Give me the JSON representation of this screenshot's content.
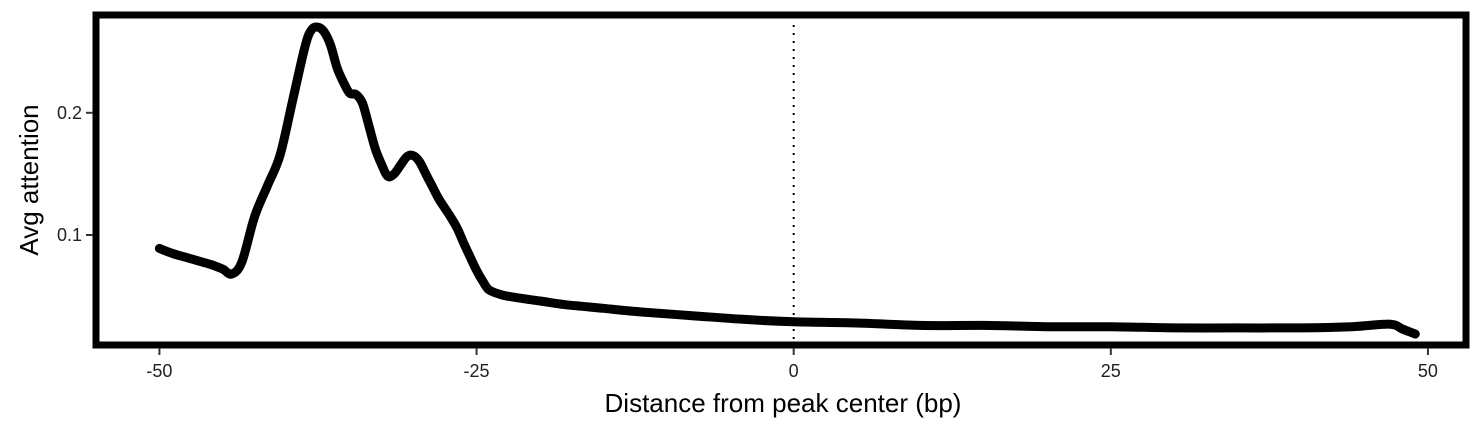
{
  "chart_data": {
    "type": "line",
    "title": "",
    "xlabel": "Distance from peak center (bp)",
    "ylabel": "Avg attention",
    "xlim": [
      -55,
      53
    ],
    "ylim": [
      0.01,
      0.28
    ],
    "x_ticks": [
      -50,
      -25,
      0,
      25,
      50
    ],
    "x_tick_labels": [
      "-50",
      "-25",
      "0",
      "25",
      "50"
    ],
    "y_ticks": [
      0.1,
      0.2
    ],
    "y_tick_labels": [
      "0.1",
      "0.2"
    ],
    "grid": false,
    "legend": "none",
    "reference_line": {
      "x": 0,
      "style": "dotted"
    },
    "line_color": "#000000",
    "series": [
      {
        "x": [
          -50,
          -49,
          -48,
          -47,
          -46,
          -45,
          -44.3,
          -43.5,
          -42.5,
          -41.5,
          -40.5,
          -39.5,
          -38.5,
          -38,
          -37.5,
          -37,
          -36.5,
          -36,
          -35.5,
          -35,
          -34.5,
          -34,
          -33.5,
          -33,
          -32.5,
          -32,
          -31.5,
          -31,
          -30.5,
          -30,
          -29.5,
          -29,
          -28.5,
          -28,
          -27.5,
          -27,
          -26.5,
          -26,
          -25.5,
          -25,
          -24.5,
          -24,
          -23,
          -22,
          -20,
          -18,
          -15,
          -12,
          -8,
          -4,
          0,
          5,
          10,
          15,
          20,
          25,
          30,
          35,
          40,
          44,
          47,
          48,
          49
        ],
        "y": [
          0.089,
          0.085,
          0.082,
          0.079,
          0.076,
          0.072,
          0.068,
          0.078,
          0.115,
          0.14,
          0.165,
          0.21,
          0.255,
          0.268,
          0.27,
          0.266,
          0.255,
          0.237,
          0.225,
          0.216,
          0.215,
          0.208,
          0.19,
          0.171,
          0.158,
          0.148,
          0.15,
          0.157,
          0.164,
          0.165,
          0.16,
          0.15,
          0.14,
          0.13,
          0.122,
          0.114,
          0.105,
          0.093,
          0.082,
          0.071,
          0.062,
          0.055,
          0.051,
          0.049,
          0.046,
          0.043,
          0.04,
          0.037,
          0.034,
          0.031,
          0.029,
          0.028,
          0.026,
          0.026,
          0.025,
          0.025,
          0.024,
          0.024,
          0.024,
          0.025,
          0.027,
          0.023,
          0.019
        ]
      }
    ]
  }
}
